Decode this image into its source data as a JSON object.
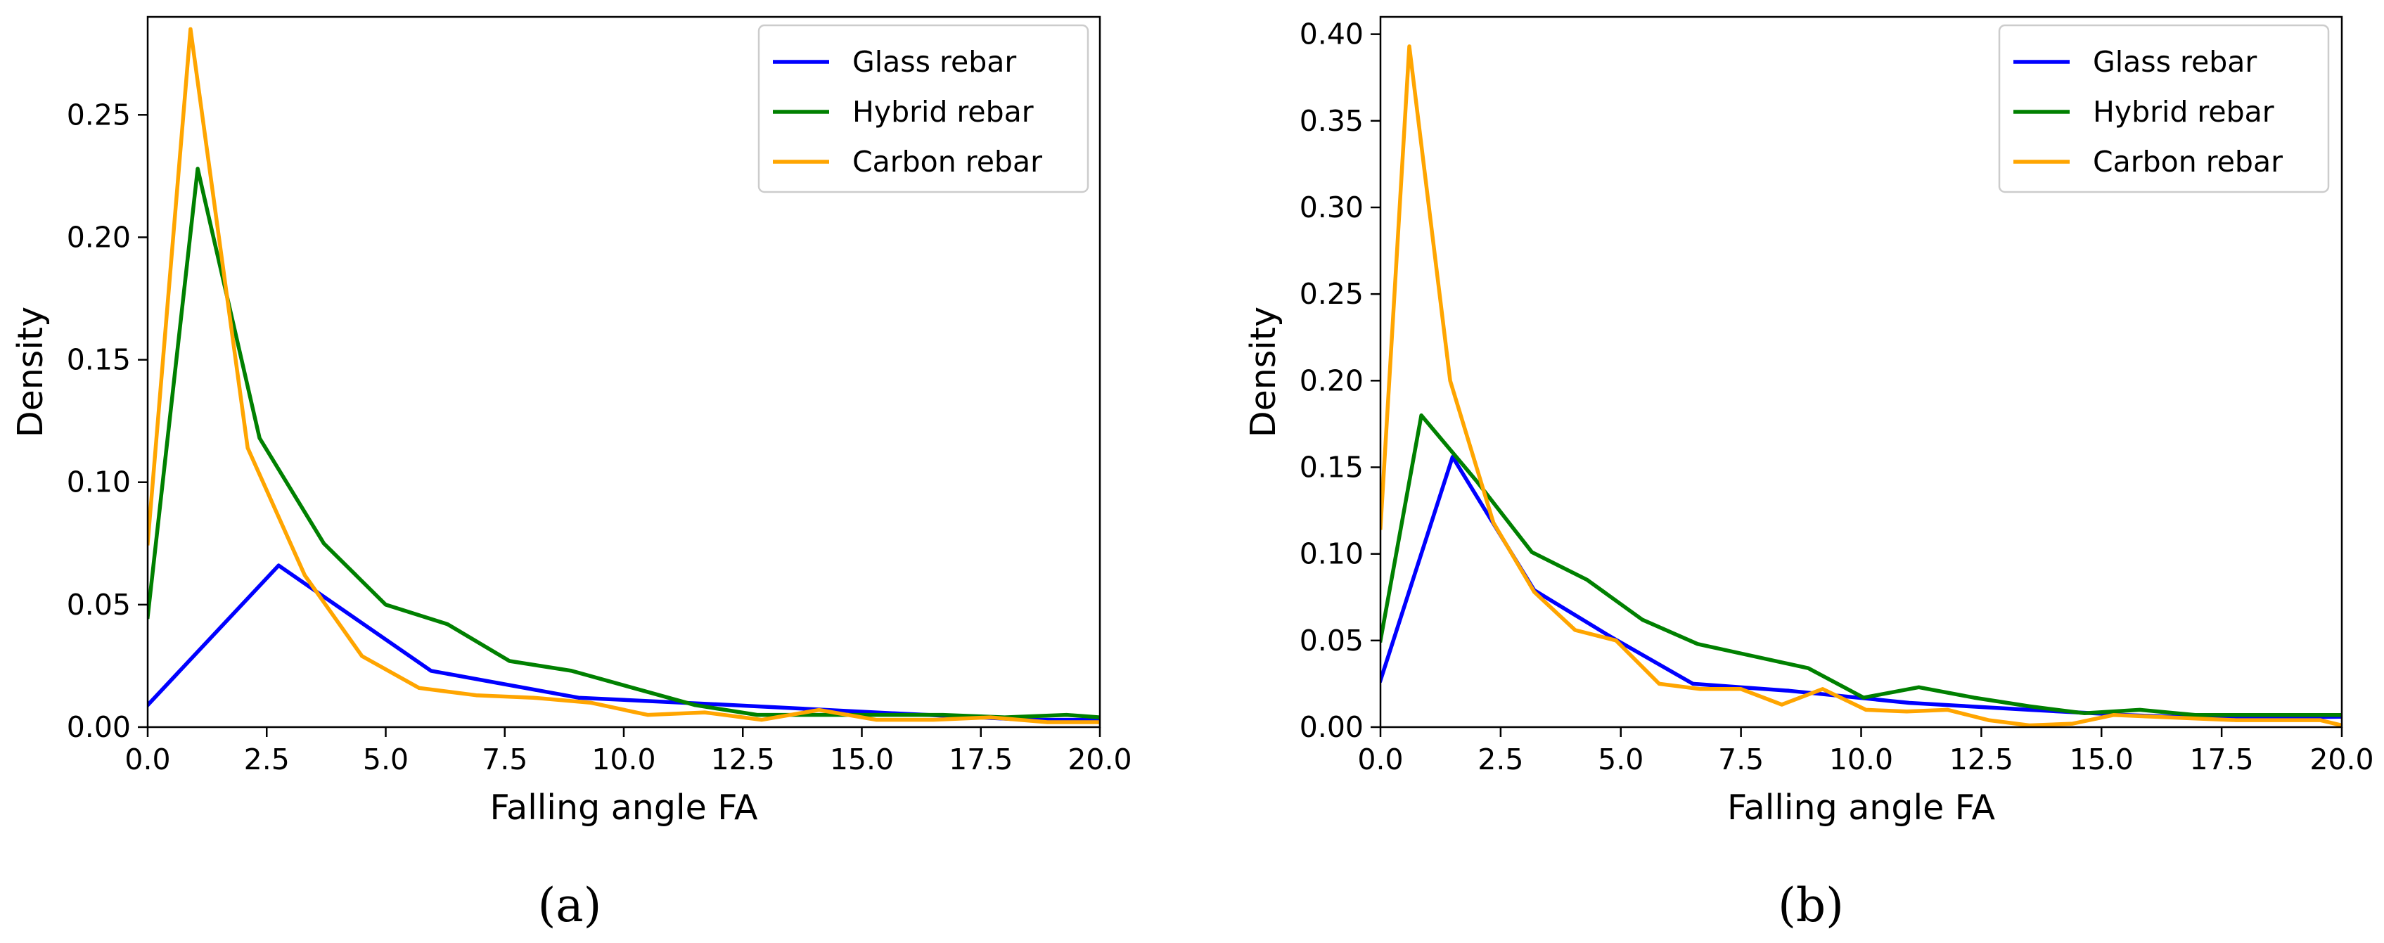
{
  "chart_data": [
    {
      "type": "line",
      "panel_label": "(a)",
      "xlabel": "Falling angle FA",
      "ylabel": "Density",
      "xlim": [
        0.0,
        20.0
      ],
      "ylim": [
        0.0,
        0.29
      ],
      "x_ticks": [
        0.0,
        2.5,
        5.0,
        7.5,
        10.0,
        12.5,
        15.0,
        17.5,
        20.0
      ],
      "x_tick_labels": [
        "0.0",
        "2.5",
        "5.0",
        "7.5",
        "10.0",
        "12.5",
        "15.0",
        "17.5",
        "20.0"
      ],
      "y_ticks": [
        0.0,
        0.05,
        0.1,
        0.15,
        0.2,
        0.25
      ],
      "y_tick_labels": [
        "0.00",
        "0.05",
        "0.10",
        "0.15",
        "0.20",
        "0.25"
      ],
      "legend_position": "top-right",
      "grid": false,
      "series": [
        {
          "name": "Glass rebar",
          "color": "#0000ff",
          "x": [
            0.0,
            2.75,
            5.95,
            9.05,
            12.3,
            15.3,
            18.5,
            20.0
          ],
          "y": [
            0.009,
            0.066,
            0.023,
            0.012,
            0.009,
            0.006,
            0.003,
            0.003
          ]
        },
        {
          "name": "Hybrid rebar",
          "color": "#008000",
          "x": [
            0.0,
            1.05,
            2.35,
            3.7,
            5.0,
            6.3,
            7.6,
            8.9,
            10.2,
            11.5,
            12.8,
            14.1,
            15.4,
            16.7,
            18.0,
            19.3,
            20.0
          ],
          "y": [
            0.045,
            0.228,
            0.118,
            0.075,
            0.05,
            0.042,
            0.027,
            0.023,
            0.016,
            0.009,
            0.005,
            0.005,
            0.005,
            0.005,
            0.004,
            0.005,
            0.004
          ]
        },
        {
          "name": "Carbon rebar",
          "color": "#ffa500",
          "x": [
            0.0,
            0.9,
            2.1,
            3.3,
            4.5,
            5.7,
            6.9,
            8.1,
            9.3,
            10.5,
            11.7,
            12.9,
            14.1,
            15.3,
            16.5,
            17.7,
            18.9,
            20.0
          ],
          "y": [
            0.075,
            0.285,
            0.114,
            0.062,
            0.029,
            0.016,
            0.013,
            0.012,
            0.01,
            0.005,
            0.006,
            0.003,
            0.007,
            0.003,
            0.003,
            0.004,
            0.002,
            0.002
          ]
        }
      ]
    },
    {
      "type": "line",
      "panel_label": "(b)",
      "xlabel": "Falling angle FA",
      "ylabel": "Density",
      "xlim": [
        0.0,
        20.0
      ],
      "ylim": [
        0.0,
        0.41
      ],
      "x_ticks": [
        0.0,
        2.5,
        5.0,
        7.5,
        10.0,
        12.5,
        15.0,
        17.5,
        20.0
      ],
      "x_tick_labels": [
        "0.0",
        "2.5",
        "5.0",
        "7.5",
        "10.0",
        "12.5",
        "15.0",
        "17.5",
        "20.0"
      ],
      "y_ticks": [
        0.0,
        0.05,
        0.1,
        0.15,
        0.2,
        0.25,
        0.3,
        0.35,
        0.4
      ],
      "y_tick_labels": [
        "0.00",
        "0.05",
        "0.10",
        "0.15",
        "0.20",
        "0.25",
        "0.30",
        "0.35",
        "0.40"
      ],
      "legend_position": "top-right",
      "grid": false,
      "series": [
        {
          "name": "Glass rebar",
          "color": "#0000ff",
          "x": [
            0.0,
            1.5,
            3.2,
            4.8,
            6.5,
            8.5,
            11.0,
            13.5,
            15.5,
            17.5,
            20.0
          ],
          "y": [
            0.027,
            0.156,
            0.079,
            0.052,
            0.025,
            0.021,
            0.014,
            0.01,
            0.007,
            0.005,
            0.006
          ]
        },
        {
          "name": "Hybrid rebar",
          "color": "#008000",
          "x": [
            0.0,
            0.85,
            2.0,
            3.15,
            4.3,
            5.45,
            6.6,
            7.75,
            8.9,
            10.05,
            11.2,
            12.35,
            13.5,
            14.65,
            15.8,
            16.95,
            18.1,
            19.25,
            20.0
          ],
          "y": [
            0.05,
            0.18,
            0.142,
            0.101,
            0.085,
            0.062,
            0.048,
            0.041,
            0.034,
            0.017,
            0.023,
            0.017,
            0.012,
            0.008,
            0.01,
            0.007,
            0.007,
            0.007,
            0.007
          ]
        },
        {
          "name": "Carbon rebar",
          "color": "#ffa500",
          "x": [
            0.0,
            0.6,
            1.45,
            2.35,
            3.2,
            4.05,
            4.9,
            5.8,
            6.65,
            7.5,
            8.35,
            9.2,
            10.1,
            10.95,
            11.8,
            12.65,
            13.5,
            14.4,
            15.25,
            16.1,
            16.95,
            17.8,
            18.7,
            19.55,
            20.0
          ],
          "y": [
            0.115,
            0.393,
            0.2,
            0.118,
            0.078,
            0.056,
            0.05,
            0.025,
            0.022,
            0.022,
            0.013,
            0.022,
            0.01,
            0.009,
            0.01,
            0.004,
            0.001,
            0.002,
            0.007,
            0.006,
            0.005,
            0.004,
            0.004,
            0.004,
            0.001
          ]
        }
      ]
    }
  ]
}
